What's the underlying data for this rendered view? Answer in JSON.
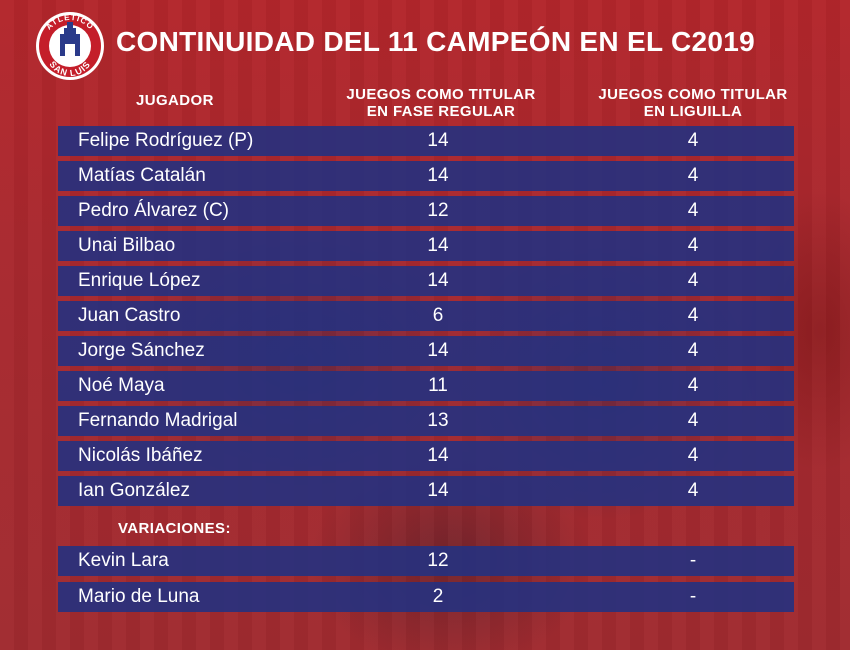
{
  "header": {
    "title": "CONTINUIDAD DEL 11 CAMPEÓN EN EL C2019",
    "logo_top": "ATLÉTICO",
    "logo_bottom": "SAN LUIS"
  },
  "columns": {
    "player": "JUGADOR",
    "regular_line1": "JUEGOS COMO TITULAR",
    "regular_line2": "EN FASE REGULAR",
    "liguilla_line1": "JUEGOS COMO TITULAR",
    "liguilla_line2": "EN LIGUILLA"
  },
  "players": [
    {
      "name": "Felipe Rodríguez (P)",
      "regular": "14",
      "liguilla": "4"
    },
    {
      "name": "Matías Catalán",
      "regular": "14",
      "liguilla": "4"
    },
    {
      "name": "Pedro Álvarez (C)",
      "regular": "12",
      "liguilla": "4"
    },
    {
      "name": "Unai Bilbao",
      "regular": "14",
      "liguilla": "4"
    },
    {
      "name": "Enrique López",
      "regular": "14",
      "liguilla": "4"
    },
    {
      "name": "Juan Castro",
      "regular": "6",
      "liguilla": "4"
    },
    {
      "name": "Jorge Sánchez",
      "regular": "14",
      "liguilla": "4"
    },
    {
      "name": "Noé Maya",
      "regular": "11",
      "liguilla": "4"
    },
    {
      "name": "Fernando Madrigal",
      "regular": "13",
      "liguilla": "4"
    },
    {
      "name": "Nicolás Ibáñez",
      "regular": "14",
      "liguilla": "4"
    },
    {
      "name": "Ian González",
      "regular": "14",
      "liguilla": "4"
    }
  ],
  "variations_label": "VARIACIONES:",
  "variations": [
    {
      "name": "Kevin Lara",
      "regular": "12",
      "liguilla": "-"
    },
    {
      "name": "Mario de Luna",
      "regular": "2",
      "liguilla": "-"
    }
  ],
  "colors": {
    "background": "#b02a2e",
    "row": "#253180",
    "text": "#ffffff"
  }
}
